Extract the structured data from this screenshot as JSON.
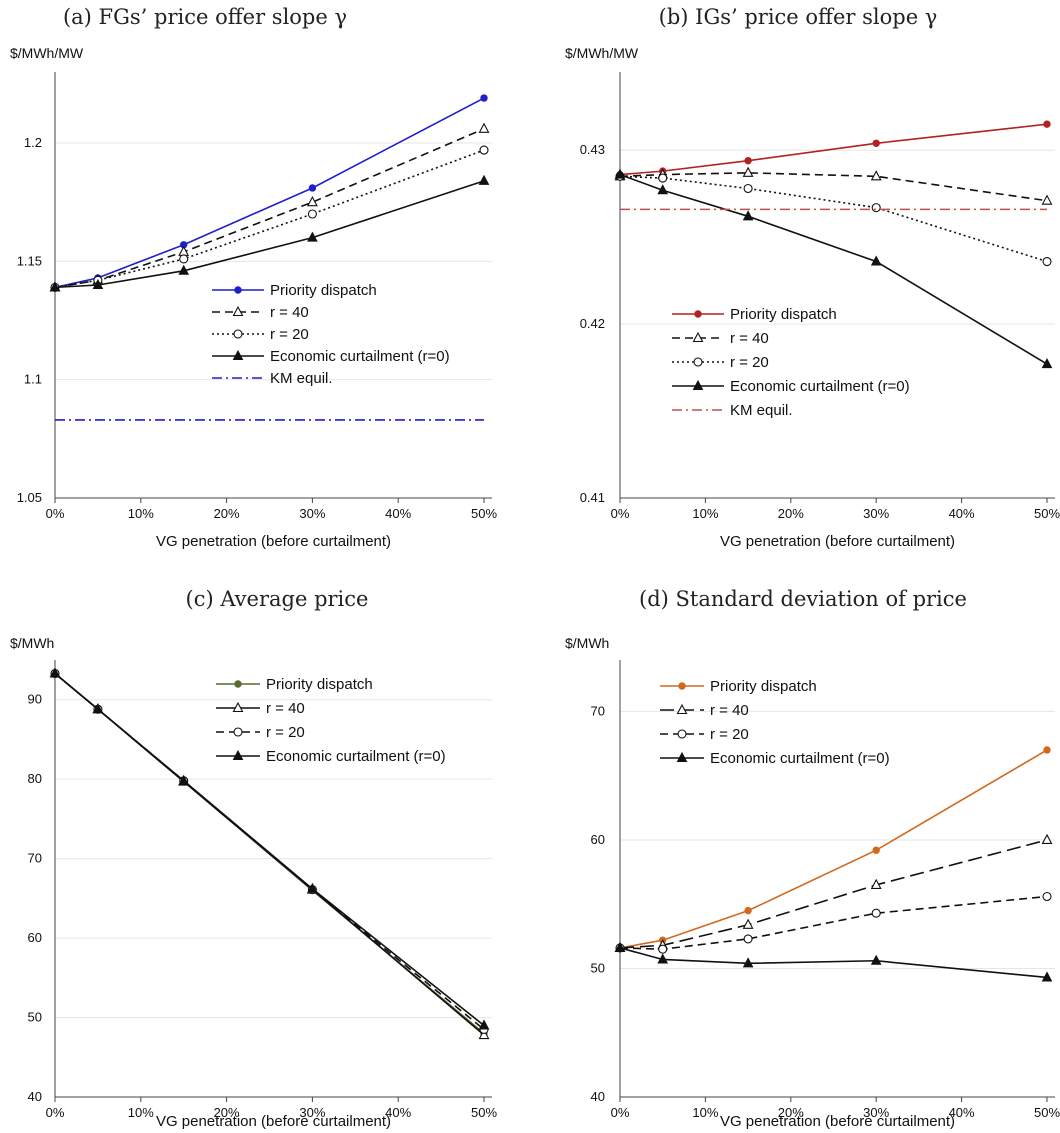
{
  "chart_data": [
    {
      "type": "line",
      "title": "(a) FGs’ price offer slope γ",
      "ylabel": "$/MWh/MW",
      "xlabel": "VG penetration (before curtailment)",
      "x": [
        0,
        5,
        15,
        30,
        50
      ],
      "x_tick_labels": [
        "0%",
        "10%",
        "20%",
        "30%",
        "40%",
        "50%"
      ],
      "y_tick_labels": [
        "1.05",
        "1.1",
        "1.15",
        "1.2"
      ],
      "ylim": [
        1.05,
        1.23
      ],
      "grid": "horizontal",
      "legend_position": "lower-right",
      "series": [
        {
          "name": "Priority dispatch",
          "values": [
            1.139,
            1.143,
            1.157,
            1.181,
            1.219
          ],
          "color": "#1f1fcc",
          "style": "solid",
          "marker": "filled-circle"
        },
        {
          "name": "r = 40",
          "values": [
            1.139,
            1.142,
            1.154,
            1.175,
            1.206
          ],
          "color": "#111111",
          "style": "dashed",
          "marker": "open-triangle"
        },
        {
          "name": "r = 20",
          "values": [
            1.139,
            1.142,
            1.151,
            1.17,
            1.197
          ],
          "color": "#111111",
          "style": "dotted",
          "marker": "open-circle"
        },
        {
          "name": "Economic curtailment (r=0)",
          "values": [
            1.139,
            1.14,
            1.146,
            1.16,
            1.184
          ],
          "color": "#111111",
          "style": "solid",
          "marker": "filled-triangle"
        },
        {
          "name": "KM equil.",
          "values": [
            1.083,
            1.083,
            1.083,
            1.083,
            1.083
          ],
          "color": "#1f1fcc",
          "style": "dashdot",
          "marker": "none"
        }
      ]
    },
    {
      "type": "line",
      "title": "(b) IGs’ price offer slope γ",
      "ylabel": "$/MWh/MW",
      "xlabel": "VG penetration (before curtailment)",
      "x": [
        0,
        5,
        15,
        30,
        50
      ],
      "x_tick_labels": [
        "0%",
        "10%",
        "20%",
        "30%",
        "40%",
        "50%"
      ],
      "y_tick_labels": [
        "0.41",
        "0.42",
        "0.43"
      ],
      "ylim": [
        0.41,
        0.4345
      ],
      "grid": "horizontal",
      "legend_position": "lower-left",
      "series": [
        {
          "name": "Priority dispatch",
          "values": [
            0.4286,
            0.4288,
            0.4294,
            0.4304,
            0.4315
          ],
          "color": "#b22222",
          "style": "solid",
          "marker": "filled-circle"
        },
        {
          "name": "r = 40",
          "values": [
            0.4285,
            0.4286,
            0.4287,
            0.4285,
            0.4271
          ],
          "color": "#111111",
          "style": "dashed",
          "marker": "open-triangle"
        },
        {
          "name": "r = 20",
          "values": [
            0.4285,
            0.4284,
            0.4278,
            0.4267,
            0.4236
          ],
          "color": "#111111",
          "style": "dotted",
          "marker": "open-circle"
        },
        {
          "name": "Economic curtailment (r=0)",
          "values": [
            0.4286,
            0.4277,
            0.4262,
            0.4236,
            0.4177
          ],
          "color": "#111111",
          "style": "solid",
          "marker": "filled-triangle"
        },
        {
          "name": "KM equil.",
          "values": [
            0.4266,
            0.4266,
            0.4266,
            0.4266,
            0.4266
          ],
          "color": "#c0504d",
          "style": "dashdot",
          "marker": "none"
        }
      ]
    },
    {
      "type": "line",
      "title": "(c) Average price",
      "ylabel": "$/MWh",
      "xlabel": "VG penetration (before curtailment)",
      "x": [
        0,
        5,
        15,
        30,
        50
      ],
      "x_tick_labels": [
        "0%",
        "10%",
        "20%",
        "30%",
        "40%",
        "50%"
      ],
      "y_tick_labels": [
        "40",
        "50",
        "60",
        "70",
        "80",
        "90"
      ],
      "ylim": [
        40,
        95
      ],
      "grid": "horizontal",
      "legend_position": "top-right",
      "series": [
        {
          "name": "Priority dispatch",
          "values": [
            93.3,
            88.8,
            79.7,
            66.0,
            48.0
          ],
          "color": "#556b2f",
          "style": "solid",
          "marker": "filled-circle"
        },
        {
          "name": "r = 40",
          "values": [
            93.3,
            88.8,
            79.7,
            66.1,
            47.8
          ],
          "color": "#111111",
          "style": "solid",
          "marker": "open-triangle"
        },
        {
          "name": "r = 20",
          "values": [
            93.3,
            88.8,
            79.8,
            66.1,
            48.5
          ],
          "color": "#111111",
          "style": "dashed",
          "marker": "open-circle"
        },
        {
          "name": "Economic curtailment (r=0)",
          "values": [
            93.3,
            88.8,
            79.8,
            66.2,
            49.0
          ],
          "color": "#111111",
          "style": "solid",
          "marker": "filled-triangle"
        }
      ]
    },
    {
      "type": "line",
      "title": "(d) Standard deviation of price",
      "ylabel": "$/MWh",
      "xlabel": "VG penetration (before curtailment)",
      "x": [
        0,
        5,
        15,
        30,
        50
      ],
      "x_tick_labels": [
        "0%",
        "10%",
        "20%",
        "30%",
        "40%",
        "50%"
      ],
      "y_tick_labels": [
        "40",
        "50",
        "60",
        "70"
      ],
      "ylim": [
        40,
        74
      ],
      "grid": "horizontal",
      "legend_position": "top-left",
      "series": [
        {
          "name": "Priority dispatch",
          "values": [
            51.6,
            52.2,
            54.5,
            59.2,
            67.0
          ],
          "color": "#d2691e",
          "style": "solid",
          "marker": "filled-circle"
        },
        {
          "name": "r = 40",
          "values": [
            51.6,
            51.8,
            53.4,
            56.5,
            60.0
          ],
          "color": "#111111",
          "style": "longdash",
          "marker": "open-triangle"
        },
        {
          "name": "r = 20",
          "values": [
            51.6,
            51.5,
            52.3,
            54.3,
            55.6
          ],
          "color": "#111111",
          "style": "dashed",
          "marker": "open-circle"
        },
        {
          "name": "Economic curtailment (r=0)",
          "values": [
            51.6,
            50.7,
            50.4,
            50.6,
            49.3
          ],
          "color": "#111111",
          "style": "solid",
          "marker": "filled-triangle"
        }
      ]
    }
  ]
}
